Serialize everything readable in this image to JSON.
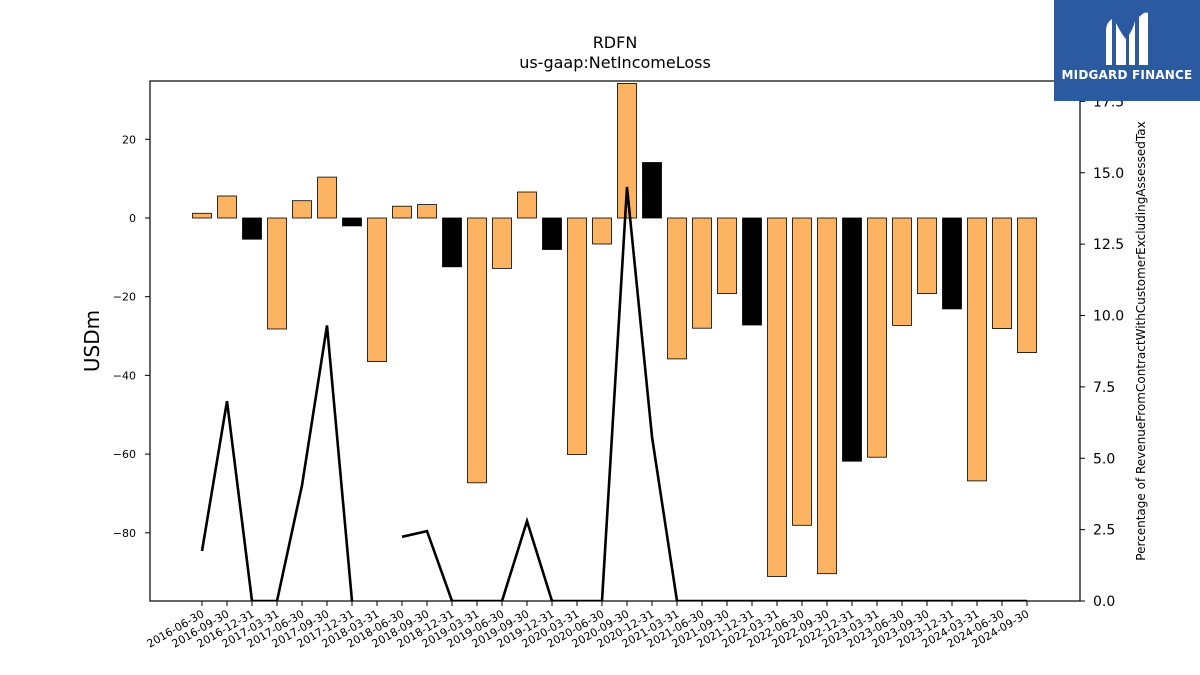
{
  "chart_data": {
    "type": "bar",
    "title": "RDFN",
    "subtitle": "us-gaap:NetIncomeLoss",
    "ylabel": "USDm",
    "y2label": "Percentage of RevenueFromContractWithCustomerExcludingAssessedTax",
    "ylim": [
      -97,
      35
    ],
    "y2lim": [
      0,
      18.3
    ],
    "yticks": [
      20,
      0,
      -20,
      -40,
      -60,
      -80
    ],
    "y2ticks": [
      0.0,
      2.5,
      5.0,
      7.5,
      10.0,
      12.5,
      15.0,
      17.5
    ],
    "bar_colors": {
      "default": "#fdb462",
      "q4": "#000000"
    },
    "categories": [
      "2016-06-30",
      "2016-09-30",
      "2016-12-31",
      "2017-03-31",
      "2017-06-30",
      "2017-09-30",
      "2017-12-31",
      "2018-03-31",
      "2018-06-30",
      "2018-09-30",
      "2018-12-31",
      "2019-03-31",
      "2019-06-30",
      "2019-09-30",
      "2019-12-31",
      "2020-03-31",
      "2020-06-30",
      "2020-09-30",
      "2020-12-31",
      "2021-03-31",
      "2021-06-30",
      "2021-09-30",
      "2021-12-31",
      "2022-03-31",
      "2022-06-30",
      "2022-09-30",
      "2022-12-31",
      "2023-03-31",
      "2023-06-30",
      "2023-09-30",
      "2023-12-31",
      "2024-03-31",
      "2024-06-30",
      "2024-09-30"
    ],
    "series": [
      {
        "type": "bar",
        "axis": "left",
        "values": [
          1.2,
          5.6,
          -5.4,
          -28.2,
          4.4,
          10.4,
          -2.0,
          -36.5,
          3.0,
          3.4,
          -12.4,
          -67.3,
          -12.8,
          6.6,
          -8.0,
          -60.1,
          -6.6,
          34.2,
          14.1,
          -35.8,
          -28.0,
          -19.2,
          -27.2,
          -91.1,
          -78.1,
          -90.4,
          -61.8,
          -60.8,
          -27.3,
          -19.2,
          -23.1,
          -66.8,
          -28.1,
          -34.2
        ]
      },
      {
        "type": "line",
        "axis": "right",
        "values": [
          1.75,
          7.0,
          0.0,
          0.0,
          4.05,
          9.65,
          0.0,
          null,
          2.25,
          2.45,
          0.0,
          0.0,
          0.0,
          2.8,
          0.0,
          0.0,
          0.0,
          14.5,
          5.75,
          0.0,
          0.0,
          0.0,
          0.0,
          0.0,
          0.0,
          0.0,
          0.0,
          0.0,
          0.0,
          0.0,
          0.0,
          0.0,
          0.0,
          0.0
        ]
      }
    ]
  },
  "logo": {
    "text": "MIDGARD FINANCE",
    "color": "#2c5aa0"
  }
}
